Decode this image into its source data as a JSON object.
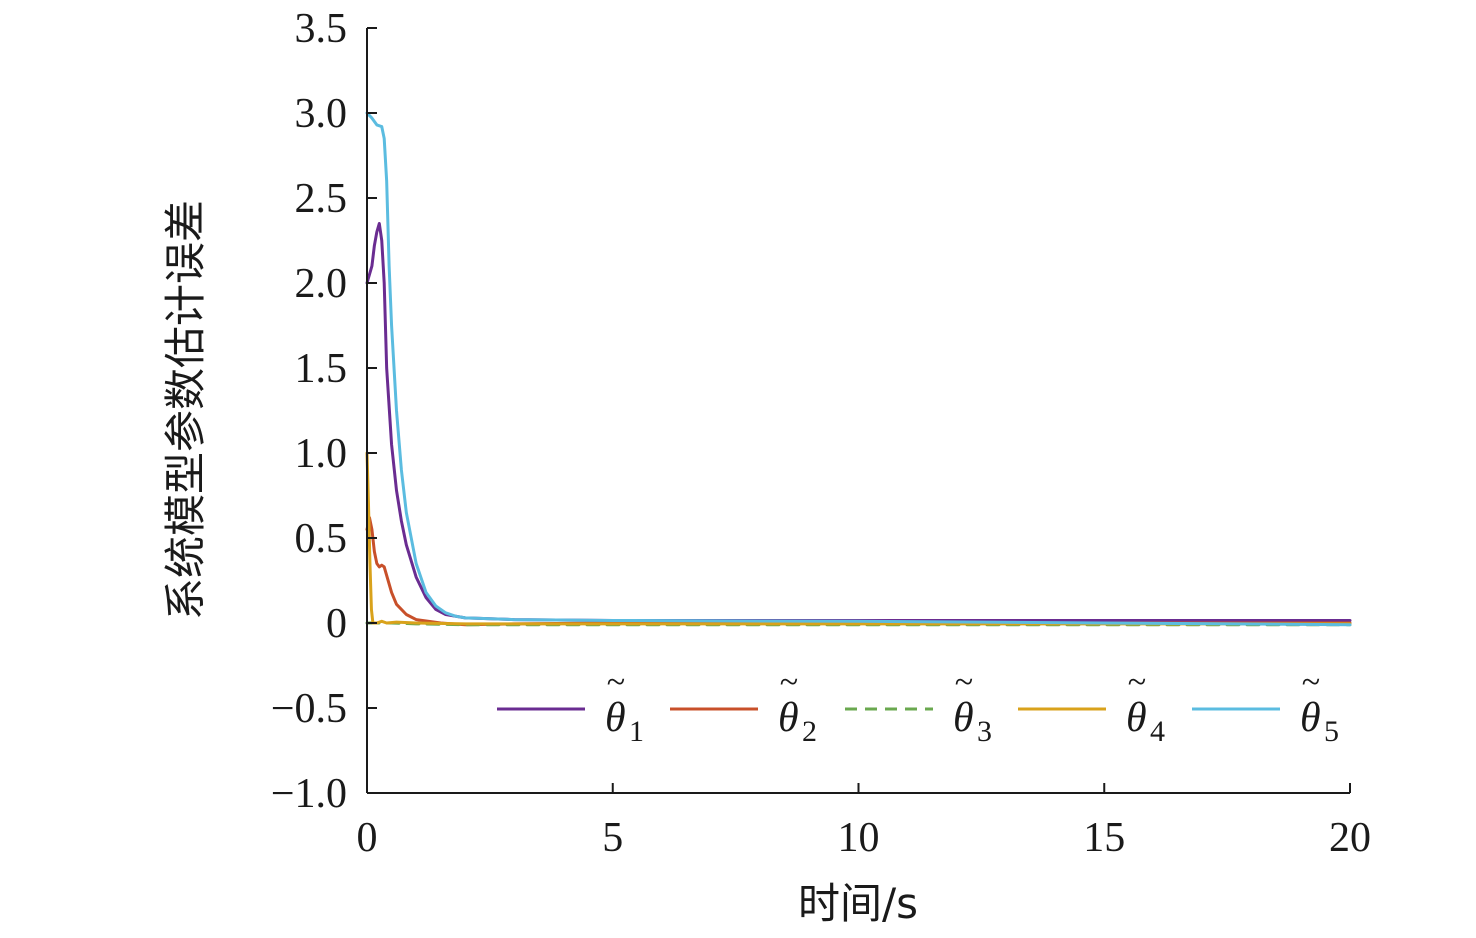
{
  "chart_data": {
    "type": "line",
    "xlabel": "时间/s",
    "ylabel": "系统模型参数估计误差",
    "xlim": [
      0,
      20
    ],
    "ylim": [
      -1.0,
      3.5
    ],
    "x_ticks": [
      0,
      5,
      10,
      15,
      20
    ],
    "x_tick_labels": [
      "0",
      "5",
      "10",
      "15",
      "20"
    ],
    "y_ticks": [
      3.5,
      3.0,
      2.5,
      2.0,
      1.5,
      1.0,
      0.5,
      0,
      -0.5,
      -1.0
    ],
    "y_tick_labels": [
      "3.5",
      "3.0",
      "2.5",
      "2.0",
      "1.5",
      "1.0",
      "0.5",
      "0",
      "−0.5",
      "−1.0"
    ],
    "grid": false,
    "legend_position": "bottom-right",
    "series": [
      {
        "name": "θ̃1",
        "symbol": "θ",
        "subscript": "1",
        "color": "#6a2c91",
        "dash": "solid",
        "points": [
          [
            0,
            2.0
          ],
          [
            0.05,
            2.05
          ],
          [
            0.1,
            2.1
          ],
          [
            0.15,
            2.22
          ],
          [
            0.2,
            2.3
          ],
          [
            0.25,
            2.35
          ],
          [
            0.3,
            2.25
          ],
          [
            0.35,
            2.0
          ],
          [
            0.4,
            1.5
          ],
          [
            0.5,
            1.05
          ],
          [
            0.6,
            0.78
          ],
          [
            0.7,
            0.6
          ],
          [
            0.8,
            0.46
          ],
          [
            1.0,
            0.27
          ],
          [
            1.2,
            0.15
          ],
          [
            1.4,
            0.08
          ],
          [
            1.6,
            0.05
          ],
          [
            2.0,
            0.03
          ],
          [
            3.0,
            0.02
          ],
          [
            5,
            0.015
          ],
          [
            10,
            0.015
          ],
          [
            15,
            0.015
          ],
          [
            20,
            0.015
          ]
        ]
      },
      {
        "name": "θ̃2",
        "symbol": "θ",
        "subscript": "2",
        "color": "#c8502a",
        "dash": "solid",
        "points": [
          [
            0,
            0.55
          ],
          [
            0.05,
            0.62
          ],
          [
            0.1,
            0.55
          ],
          [
            0.15,
            0.42
          ],
          [
            0.2,
            0.35
          ],
          [
            0.25,
            0.33
          ],
          [
            0.3,
            0.34
          ],
          [
            0.35,
            0.33
          ],
          [
            0.4,
            0.28
          ],
          [
            0.5,
            0.18
          ],
          [
            0.6,
            0.11
          ],
          [
            0.8,
            0.05
          ],
          [
            1.0,
            0.02
          ],
          [
            1.5,
            0.0
          ],
          [
            2.0,
            -0.01
          ],
          [
            3,
            -0.005
          ],
          [
            5,
            0.0
          ],
          [
            10,
            0.0
          ],
          [
            15,
            0.0
          ],
          [
            20,
            0.0
          ]
        ]
      },
      {
        "name": "θ̃3",
        "symbol": "θ",
        "subscript": "3",
        "color": "#6aa84f",
        "dash": "dashed",
        "points": [
          [
            0,
            0.0
          ],
          [
            0.5,
            0.0
          ],
          [
            1,
            -0.005
          ],
          [
            2,
            -0.01
          ],
          [
            3,
            -0.01
          ],
          [
            5,
            -0.01
          ],
          [
            10,
            -0.01
          ],
          [
            15,
            -0.01
          ],
          [
            20,
            -0.01
          ]
        ]
      },
      {
        "name": "θ̃4",
        "symbol": "θ",
        "subscript": "4",
        "color": "#d9a21b",
        "dash": "solid",
        "points": [
          [
            0,
            1.0
          ],
          [
            0.03,
            0.7
          ],
          [
            0.06,
            0.35
          ],
          [
            0.09,
            0.08
          ],
          [
            0.12,
            0.0
          ],
          [
            0.2,
            0.0
          ],
          [
            0.3,
            0.01
          ],
          [
            0.4,
            0.0
          ],
          [
            0.6,
            0.005
          ],
          [
            1.0,
            0.0
          ],
          [
            2,
            -0.005
          ],
          [
            5,
            -0.005
          ],
          [
            10,
            -0.005
          ],
          [
            15,
            -0.005
          ],
          [
            20,
            -0.005
          ]
        ]
      },
      {
        "name": "θ̃5",
        "symbol": "θ",
        "subscript": "5",
        "color": "#5bbce0",
        "dash": "solid",
        "points": [
          [
            0,
            3.0
          ],
          [
            0.1,
            2.97
          ],
          [
            0.2,
            2.93
          ],
          [
            0.3,
            2.92
          ],
          [
            0.35,
            2.85
          ],
          [
            0.4,
            2.6
          ],
          [
            0.45,
            2.1
          ],
          [
            0.5,
            1.75
          ],
          [
            0.6,
            1.25
          ],
          [
            0.7,
            0.9
          ],
          [
            0.8,
            0.65
          ],
          [
            1.0,
            0.35
          ],
          [
            1.2,
            0.18
          ],
          [
            1.4,
            0.1
          ],
          [
            1.6,
            0.06
          ],
          [
            1.8,
            0.04
          ],
          [
            2.0,
            0.03
          ],
          [
            3.0,
            0.02
          ],
          [
            5,
            0.015
          ],
          [
            10,
            0.01
          ],
          [
            15,
            0.0
          ],
          [
            20,
            -0.01
          ]
        ]
      }
    ]
  }
}
